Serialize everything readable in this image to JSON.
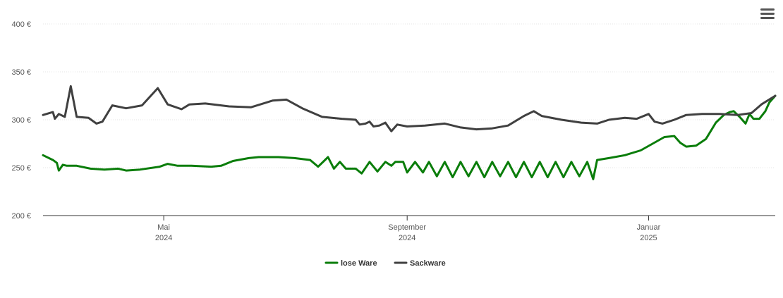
{
  "chart_data": {
    "type": "line",
    "y_unit": "€",
    "ylim": [
      200,
      400
    ],
    "y_ticks": [
      {
        "value": 400,
        "label": "400 €"
      },
      {
        "value": 350,
        "label": "350 €"
      },
      {
        "value": 300,
        "label": "300 €"
      },
      {
        "value": 250,
        "label": "250 €"
      },
      {
        "value": 200,
        "label": "200 €"
      }
    ],
    "xlim": [
      "2024-03-01",
      "2025-03-06"
    ],
    "x_ticks": [
      {
        "date": "2024-05-01",
        "line1": "Mai",
        "line2": "2024"
      },
      {
        "date": "2024-09-01",
        "line1": "September",
        "line2": "2024"
      },
      {
        "date": "2025-01-01",
        "line1": "Januar",
        "line2": "2025"
      }
    ],
    "grid": true,
    "legend": "bottom-center",
    "series": [
      {
        "name": "lose Ware",
        "color": "#0a7d0a",
        "points": [
          [
            "2024-03-01",
            263
          ],
          [
            "2024-03-06",
            258
          ],
          [
            "2024-03-08",
            255
          ],
          [
            "2024-03-09",
            247
          ],
          [
            "2024-03-11",
            253
          ],
          [
            "2024-03-13",
            252
          ],
          [
            "2024-03-18",
            252
          ],
          [
            "2024-03-25",
            249
          ],
          [
            "2024-04-01",
            248
          ],
          [
            "2024-04-08",
            249
          ],
          [
            "2024-04-12",
            247
          ],
          [
            "2024-04-19",
            248
          ],
          [
            "2024-04-29",
            251
          ],
          [
            "2024-05-03",
            254
          ],
          [
            "2024-05-08",
            252
          ],
          [
            "2024-05-15",
            252
          ],
          [
            "2024-05-25",
            251
          ],
          [
            "2024-05-30",
            252
          ],
          [
            "2024-06-05",
            257
          ],
          [
            "2024-06-13",
            260
          ],
          [
            "2024-06-18",
            261
          ],
          [
            "2024-06-28",
            261
          ],
          [
            "2024-07-06",
            260
          ],
          [
            "2024-07-14",
            258
          ],
          [
            "2024-07-18",
            251
          ],
          [
            "2024-07-23",
            261
          ],
          [
            "2024-07-26",
            249
          ],
          [
            "2024-07-29",
            256
          ],
          [
            "2024-08-01",
            249
          ],
          [
            "2024-08-06",
            249
          ],
          [
            "2024-08-09",
            244
          ],
          [
            "2024-08-13",
            256
          ],
          [
            "2024-08-17",
            246
          ],
          [
            "2024-08-21",
            256
          ],
          [
            "2024-08-24",
            252
          ],
          [
            "2024-08-26",
            256
          ],
          [
            "2024-08-30",
            256
          ],
          [
            "2024-09-01",
            245
          ],
          [
            "2024-09-05",
            256
          ],
          [
            "2024-09-09",
            245
          ],
          [
            "2024-09-12",
            256
          ],
          [
            "2024-09-16",
            241
          ],
          [
            "2024-09-20",
            256
          ],
          [
            "2024-09-24",
            240
          ],
          [
            "2024-09-28",
            256
          ],
          [
            "2024-10-02",
            241
          ],
          [
            "2024-10-06",
            256
          ],
          [
            "2024-10-10",
            240
          ],
          [
            "2024-10-14",
            256
          ],
          [
            "2024-10-18",
            241
          ],
          [
            "2024-10-22",
            256
          ],
          [
            "2024-10-26",
            240
          ],
          [
            "2024-10-30",
            256
          ],
          [
            "2024-11-03",
            240
          ],
          [
            "2024-11-07",
            256
          ],
          [
            "2024-11-11",
            240
          ],
          [
            "2024-11-15",
            256
          ],
          [
            "2024-11-19",
            240
          ],
          [
            "2024-11-23",
            256
          ],
          [
            "2024-11-27",
            241
          ],
          [
            "2024-12-01",
            256
          ],
          [
            "2024-12-04",
            238
          ],
          [
            "2024-12-06",
            258
          ],
          [
            "2024-12-12",
            260
          ],
          [
            "2024-12-20",
            263
          ],
          [
            "2024-12-28",
            268
          ],
          [
            "2025-01-03",
            275
          ],
          [
            "2025-01-09",
            282
          ],
          [
            "2025-01-14",
            283
          ],
          [
            "2025-01-17",
            276
          ],
          [
            "2025-01-20",
            272
          ],
          [
            "2025-01-25",
            273
          ],
          [
            "2025-01-30",
            280
          ],
          [
            "2025-02-04",
            297
          ],
          [
            "2025-02-08",
            305
          ],
          [
            "2025-02-11",
            308
          ],
          [
            "2025-02-13",
            309
          ],
          [
            "2025-02-16",
            303
          ],
          [
            "2025-02-19",
            296
          ],
          [
            "2025-02-21",
            306
          ],
          [
            "2025-02-23",
            301
          ],
          [
            "2025-02-26",
            301
          ],
          [
            "2025-03-01",
            309
          ],
          [
            "2025-03-03",
            318
          ],
          [
            "2025-03-06",
            325
          ]
        ]
      },
      {
        "name": "Sackware",
        "color": "#404040",
        "points": [
          [
            "2024-03-01",
            305
          ],
          [
            "2024-03-06",
            308
          ],
          [
            "2024-03-07",
            301
          ],
          [
            "2024-03-09",
            306
          ],
          [
            "2024-03-12",
            303
          ],
          [
            "2024-03-15",
            335
          ],
          [
            "2024-03-18",
            303
          ],
          [
            "2024-03-24",
            302
          ],
          [
            "2024-03-28",
            296
          ],
          [
            "2024-03-31",
            298
          ],
          [
            "2024-04-05",
            315
          ],
          [
            "2024-04-12",
            312
          ],
          [
            "2024-04-20",
            315
          ],
          [
            "2024-04-28",
            333
          ],
          [
            "2024-05-03",
            316
          ],
          [
            "2024-05-10",
            311
          ],
          [
            "2024-05-14",
            316
          ],
          [
            "2024-05-22",
            317
          ],
          [
            "2024-06-03",
            314
          ],
          [
            "2024-06-14",
            313
          ],
          [
            "2024-06-25",
            320
          ],
          [
            "2024-07-02",
            321
          ],
          [
            "2024-07-10",
            312
          ],
          [
            "2024-07-20",
            303
          ],
          [
            "2024-07-30",
            301
          ],
          [
            "2024-08-06",
            300
          ],
          [
            "2024-08-08",
            295
          ],
          [
            "2024-08-11",
            296
          ],
          [
            "2024-08-13",
            298
          ],
          [
            "2024-08-15",
            293
          ],
          [
            "2024-08-18",
            294
          ],
          [
            "2024-08-21",
            297
          ],
          [
            "2024-08-24",
            288
          ],
          [
            "2024-08-27",
            295
          ],
          [
            "2024-09-01",
            293
          ],
          [
            "2024-09-10",
            294
          ],
          [
            "2024-09-20",
            296
          ],
          [
            "2024-09-28",
            292
          ],
          [
            "2024-10-06",
            290
          ],
          [
            "2024-10-14",
            291
          ],
          [
            "2024-10-22",
            294
          ],
          [
            "2024-10-30",
            304
          ],
          [
            "2024-11-04",
            309
          ],
          [
            "2024-11-08",
            304
          ],
          [
            "2024-11-18",
            300
          ],
          [
            "2024-11-28",
            297
          ],
          [
            "2024-12-06",
            296
          ],
          [
            "2024-12-12",
            300
          ],
          [
            "2024-12-20",
            302
          ],
          [
            "2024-12-26",
            301
          ],
          [
            "2025-01-01",
            306
          ],
          [
            "2025-01-04",
            298
          ],
          [
            "2025-01-08",
            296
          ],
          [
            "2025-01-14",
            300
          ],
          [
            "2025-01-20",
            305
          ],
          [
            "2025-01-28",
            306
          ],
          [
            "2025-02-06",
            306
          ],
          [
            "2025-02-15",
            305
          ],
          [
            "2025-02-22",
            307
          ],
          [
            "2025-02-27",
            316
          ],
          [
            "2025-03-06",
            325
          ]
        ]
      }
    ]
  }
}
